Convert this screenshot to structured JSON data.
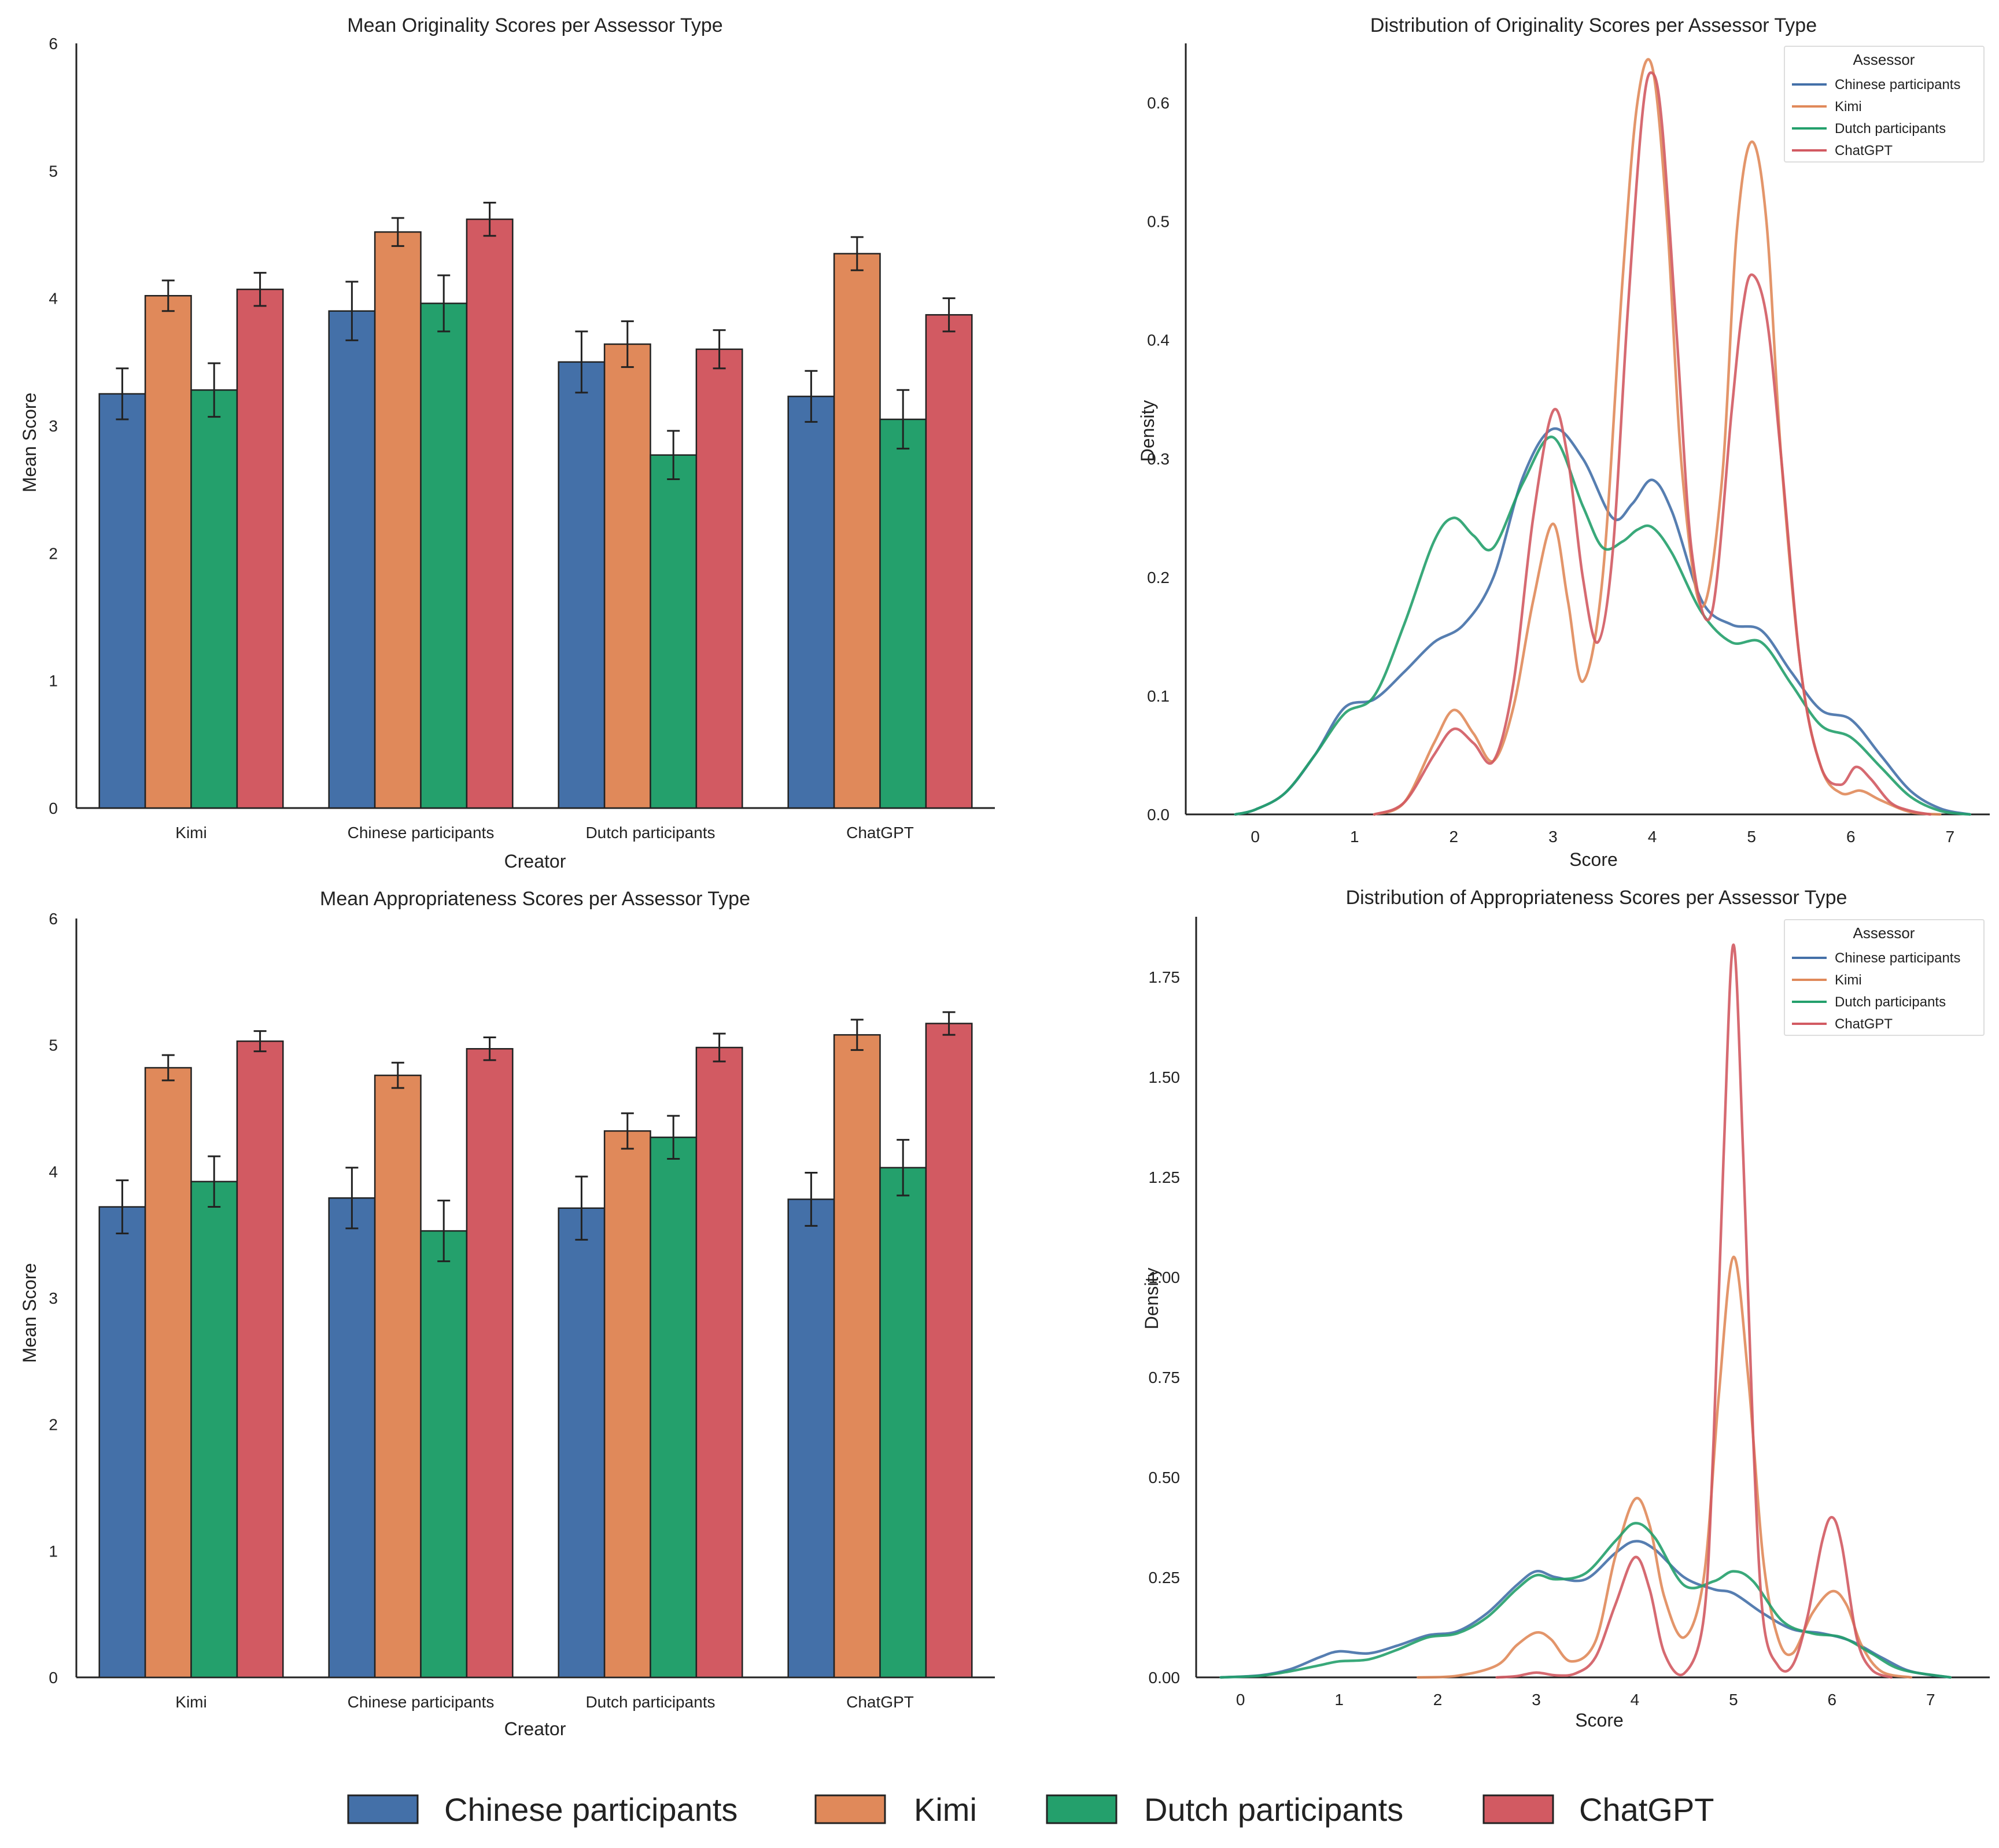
{
  "colors": {
    "Chinese participants": "#4470a8",
    "Kimi": "#e0895a",
    "Dutch participants": "#24a06c",
    "ChatGPT": "#d25a62"
  },
  "figure_legend": {
    "items": [
      "Chinese participants",
      "Kimi",
      "Dutch participants",
      "ChatGPT"
    ]
  },
  "chart_data": [
    {
      "id": "orig_bar",
      "type": "bar",
      "title": "Mean Originality Scores per Assessor Type",
      "xlabel": "Creator",
      "ylabel": "Mean Score",
      "ylim": [
        0,
        6
      ],
      "yticks": [
        0,
        1,
        2,
        3,
        4,
        5,
        6
      ],
      "categories": [
        "Kimi",
        "Chinese participants",
        "Dutch participants",
        "ChatGPT"
      ],
      "series": [
        {
          "name": "Chinese participants",
          "values": [
            3.25,
            3.9,
            3.5,
            3.23
          ],
          "err": [
            0.2,
            0.23,
            0.24,
            0.2
          ]
        },
        {
          "name": "Kimi",
          "values": [
            4.02,
            4.52,
            3.64,
            4.35
          ],
          "err": [
            0.12,
            0.11,
            0.18,
            0.13
          ]
        },
        {
          "name": "Dutch participants",
          "values": [
            3.28,
            3.96,
            2.77,
            3.05
          ],
          "err": [
            0.21,
            0.22,
            0.19,
            0.23
          ]
        },
        {
          "name": "ChatGPT",
          "values": [
            4.07,
            4.62,
            3.6,
            3.87
          ],
          "err": [
            0.13,
            0.13,
            0.15,
            0.13
          ]
        }
      ]
    },
    {
      "id": "orig_kde",
      "type": "line",
      "title": "Distribution of Originality Scores per Assessor Type",
      "xlabel": "Score",
      "ylabel": "Density",
      "xlim": [
        -0.7,
        7.4
      ],
      "ylim": [
        0,
        0.65
      ],
      "xticks": [
        0,
        1,
        2,
        3,
        4,
        5,
        6,
        7
      ],
      "yticks": [
        0.0,
        0.1,
        0.2,
        0.3,
        0.4,
        0.5,
        0.6
      ],
      "ytick_labels": [
        "0.0",
        "0.1",
        "0.2",
        "0.3",
        "0.4",
        "0.5",
        "0.6"
      ],
      "legend": {
        "title": "Assessor",
        "position": "top-right"
      },
      "series": [
        {
          "name": "Chinese participants",
          "x": [
            -0.2,
            0,
            0.3,
            0.6,
            0.9,
            1.2,
            1.5,
            1.8,
            2.1,
            2.4,
            2.7,
            3,
            3.3,
            3.6,
            3.8,
            4,
            4.2,
            4.5,
            4.8,
            5.1,
            5.4,
            5.7,
            6,
            6.3,
            6.6,
            6.9,
            7.2
          ],
          "y": [
            0,
            0.004,
            0.018,
            0.05,
            0.09,
            0.097,
            0.12,
            0.145,
            0.16,
            0.2,
            0.285,
            0.325,
            0.3,
            0.25,
            0.262,
            0.282,
            0.255,
            0.18,
            0.16,
            0.155,
            0.12,
            0.088,
            0.08,
            0.05,
            0.02,
            0.005,
            0
          ]
        },
        {
          "name": "Kimi",
          "x": [
            1.2,
            1.5,
            1.8,
            2,
            2.2,
            2.4,
            2.6,
            2.8,
            3,
            3.15,
            3.3,
            3.5,
            3.7,
            3.85,
            4,
            4.15,
            4.3,
            4.5,
            4.7,
            4.85,
            5,
            5.15,
            5.3,
            5.5,
            5.7,
            5.9,
            6.1,
            6.3,
            6.6,
            6.9
          ],
          "y": [
            0,
            0.01,
            0.06,
            0.088,
            0.068,
            0.045,
            0.09,
            0.18,
            0.245,
            0.18,
            0.112,
            0.2,
            0.45,
            0.6,
            0.63,
            0.5,
            0.29,
            0.175,
            0.28,
            0.49,
            0.567,
            0.5,
            0.3,
            0.12,
            0.04,
            0.018,
            0.02,
            0.012,
            0.002,
            0
          ]
        },
        {
          "name": "Dutch participants",
          "x": [
            -0.2,
            0,
            0.3,
            0.6,
            0.9,
            1.2,
            1.5,
            1.8,
            2,
            2.2,
            2.4,
            2.7,
            3,
            3.3,
            3.5,
            3.7,
            3.85,
            4,
            4.2,
            4.5,
            4.8,
            5.1,
            5.4,
            5.7,
            6,
            6.3,
            6.6,
            6.9,
            7.2
          ],
          "y": [
            0,
            0.004,
            0.018,
            0.05,
            0.085,
            0.1,
            0.16,
            0.23,
            0.25,
            0.235,
            0.225,
            0.28,
            0.318,
            0.26,
            0.225,
            0.23,
            0.24,
            0.242,
            0.22,
            0.17,
            0.145,
            0.145,
            0.11,
            0.075,
            0.065,
            0.04,
            0.015,
            0.003,
            0
          ]
        },
        {
          "name": "ChatGPT",
          "x": [
            1.2,
            1.5,
            1.8,
            2,
            2.2,
            2.4,
            2.6,
            2.8,
            3,
            3.15,
            3.3,
            3.45,
            3.6,
            3.75,
            3.9,
            4,
            4.1,
            4.25,
            4.4,
            4.6,
            4.8,
            4.9,
            5,
            5.15,
            5.3,
            5.5,
            5.7,
            5.9,
            6.05,
            6.2,
            6.4,
            6.6,
            6.8
          ],
          "y": [
            0,
            0.01,
            0.05,
            0.072,
            0.06,
            0.045,
            0.11,
            0.25,
            0.34,
            0.3,
            0.2,
            0.145,
            0.22,
            0.42,
            0.59,
            0.625,
            0.58,
            0.4,
            0.22,
            0.17,
            0.34,
            0.42,
            0.455,
            0.42,
            0.3,
            0.12,
            0.04,
            0.025,
            0.04,
            0.03,
            0.01,
            0.003,
            0
          ]
        }
      ]
    },
    {
      "id": "appr_bar",
      "type": "bar",
      "title": "Mean Appropriateness Scores per Assessor Type",
      "xlabel": "Creator",
      "ylabel": "Mean Score",
      "ylim": [
        0,
        6
      ],
      "yticks": [
        0,
        1,
        2,
        3,
        4,
        5,
        6
      ],
      "categories": [
        "Kimi",
        "Chinese participants",
        "Dutch participants",
        "ChatGPT"
      ],
      "series": [
        {
          "name": "Chinese participants",
          "values": [
            3.72,
            3.79,
            3.71,
            3.78
          ],
          "err": [
            0.21,
            0.24,
            0.25,
            0.21
          ]
        },
        {
          "name": "Kimi",
          "values": [
            4.82,
            4.76,
            4.32,
            5.08
          ],
          "err": [
            0.1,
            0.1,
            0.14,
            0.12
          ]
        },
        {
          "name": "Dutch participants",
          "values": [
            3.92,
            3.53,
            4.27,
            4.03
          ],
          "err": [
            0.2,
            0.24,
            0.17,
            0.22
          ]
        },
        {
          "name": "ChatGPT",
          "values": [
            5.03,
            4.97,
            4.98,
            5.17
          ],
          "err": [
            0.08,
            0.09,
            0.11,
            0.09
          ]
        }
      ]
    },
    {
      "id": "appr_kde",
      "type": "line",
      "title": "Distribution of Appropriateness Scores per Assessor Type",
      "xlabel": "Score",
      "ylabel": "Density",
      "xlim": [
        -0.45,
        7.6
      ],
      "ylim": [
        0,
        1.9
      ],
      "xticks": [
        0,
        1,
        2,
        3,
        4,
        5,
        6,
        7
      ],
      "yticks": [
        0.0,
        0.25,
        0.5,
        0.75,
        1.0,
        1.25,
        1.5,
        1.75
      ],
      "ytick_labels": [
        "0.00",
        "0.25",
        "0.50",
        "0.75",
        "1.00",
        "1.25",
        "1.50",
        "1.75"
      ],
      "legend": {
        "title": "Assessor",
        "position": "top-right"
      },
      "series": [
        {
          "name": "Chinese participants",
          "x": [
            -0.2,
            0.2,
            0.5,
            0.8,
            1,
            1.3,
            1.6,
            1.9,
            2.2,
            2.5,
            2.8,
            3,
            3.2,
            3.5,
            3.8,
            4,
            4.2,
            4.5,
            4.8,
            5,
            5.3,
            5.6,
            5.9,
            6.2,
            6.5,
            6.8,
            7.2
          ],
          "y": [
            0,
            0.005,
            0.02,
            0.05,
            0.065,
            0.06,
            0.08,
            0.105,
            0.115,
            0.16,
            0.23,
            0.265,
            0.25,
            0.245,
            0.31,
            0.34,
            0.32,
            0.25,
            0.22,
            0.21,
            0.16,
            0.12,
            0.11,
            0.09,
            0.05,
            0.015,
            0
          ]
        },
        {
          "name": "Kimi",
          "x": [
            1.8,
            2.2,
            2.6,
            2.8,
            3,
            3.15,
            3.35,
            3.6,
            3.8,
            4,
            4.15,
            4.3,
            4.5,
            4.7,
            4.85,
            5,
            5.15,
            5.3,
            5.45,
            5.6,
            5.8,
            6,
            6.15,
            6.3,
            6.5,
            6.8
          ],
          "y": [
            0,
            0.004,
            0.03,
            0.08,
            0.112,
            0.095,
            0.04,
            0.09,
            0.3,
            0.445,
            0.38,
            0.2,
            0.1,
            0.25,
            0.7,
            1.05,
            0.75,
            0.3,
            0.1,
            0.06,
            0.16,
            0.215,
            0.18,
            0.08,
            0.015,
            0
          ]
        },
        {
          "name": "Dutch participants",
          "x": [
            -0.2,
            0.2,
            0.5,
            0.8,
            1,
            1.3,
            1.6,
            1.9,
            2.2,
            2.5,
            2.8,
            3,
            3.2,
            3.5,
            3.8,
            4,
            4.2,
            4.5,
            4.8,
            5,
            5.2,
            5.5,
            5.8,
            6.1,
            6.4,
            6.7,
            7.2
          ],
          "y": [
            0,
            0.004,
            0.015,
            0.03,
            0.04,
            0.045,
            0.07,
            0.1,
            0.11,
            0.15,
            0.22,
            0.255,
            0.245,
            0.26,
            0.34,
            0.385,
            0.35,
            0.23,
            0.24,
            0.265,
            0.24,
            0.14,
            0.11,
            0.1,
            0.06,
            0.02,
            0
          ]
        },
        {
          "name": "ChatGPT",
          "x": [
            2.6,
            2.8,
            3,
            3.2,
            3.4,
            3.6,
            3.8,
            4,
            4.15,
            4.3,
            4.5,
            4.7,
            4.8,
            4.9,
            5,
            5.1,
            5.2,
            5.3,
            5.45,
            5.6,
            5.75,
            5.9,
            6,
            6.1,
            6.25,
            6.4,
            6.6
          ],
          "y": [
            0,
            0.003,
            0.012,
            0.005,
            0.01,
            0.05,
            0.18,
            0.3,
            0.22,
            0.06,
            0.01,
            0.15,
            0.6,
            1.3,
            1.83,
            1.3,
            0.6,
            0.15,
            0.03,
            0.03,
            0.15,
            0.34,
            0.4,
            0.33,
            0.1,
            0.02,
            0
          ]
        }
      ]
    }
  ]
}
